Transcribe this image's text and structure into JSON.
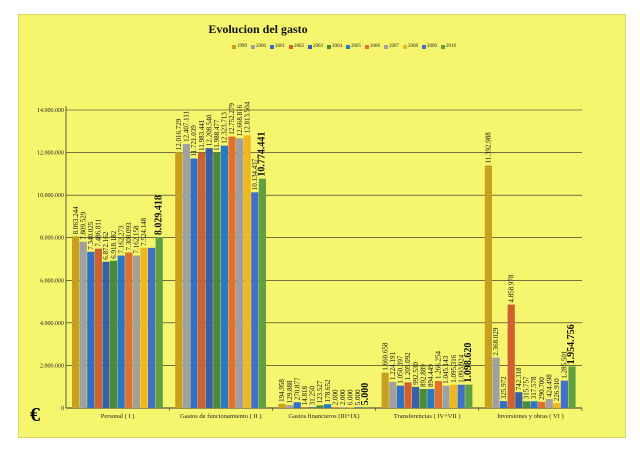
{
  "chart_data": {
    "type": "bar",
    "title": "Evolucion del gasto",
    "currency_symbol": "€",
    "series_names": [
      "1999",
      "2000",
      "2001",
      "2002",
      "2003",
      "2004",
      "2005",
      "2006",
      "2007",
      "2008",
      "2009",
      "2010"
    ],
    "series_colors": [
      "#c8a020",
      "#a0a0a0",
      "#3070c8",
      "#d06030",
      "#3860a8",
      "#4a8a3a",
      "#2878c8",
      "#e07030",
      "#a0a0a0",
      "#f0b820",
      "#4070c8",
      "#60a040"
    ],
    "categories": [
      "Personal ( I )",
      "Gastos de funcionamiento ( II )",
      "Gastos financieros (III+IX)",
      "Transferencias ( IV+VII )",
      "Inversiones y obras ( VI )"
    ],
    "values": [
      [
        8063244,
        7809529,
        7340025,
        7486811,
        6872162,
        6918182,
        7162273,
        7308093,
        7162158,
        7524148,
        7524148,
        8029418
      ],
      [
        12016729,
        12407111,
        11721039,
        11983441,
        12208540,
        11988477,
        12323713,
        12752279,
        12668816,
        12813504,
        10134437,
        10774441
      ],
      [
        194958,
        129888,
        270877,
        14818,
        31250,
        123527,
        178652,
        2000,
        2000,
        6000,
        5000,
        5000
      ],
      [
        1660658,
        1224191,
        1050397,
        1205092,
        992530,
        892889,
        894449,
        1266254,
        1045143,
        1095316,
        1093924,
        1098620
      ],
      [
        11392988,
        2368029,
        325972,
        4858978,
        742318,
        315757,
        317578,
        290700,
        424498,
        226910,
        1285501,
        1954756
      ]
    ],
    "value_labels": [
      [
        "8.063.244",
        "7.809.529",
        "7.340.025",
        "7.486.811",
        "6.872.162",
        "6.918.182",
        "7.162.273",
        "7.308.093",
        "7.162.158",
        "7.524.148",
        "",
        "8.029.418"
      ],
      [
        "12.016.729",
        "12.407.111",
        "11.721.039",
        "11.983.441",
        "12.208.540",
        "11.988.477",
        "12.323.713",
        "12.752.279",
        "12.668.816",
        "12.813.504",
        "10.134.437",
        "10.774.441"
      ],
      [
        "194.958",
        "129.888",
        "270.877",
        "14.818",
        "31.250",
        "123.527",
        "178.652",
        "2.000",
        "2.000",
        "6.000",
        "5.000",
        "5.000"
      ],
      [
        "1.660.658",
        "1.224.191",
        "1.050.397",
        "1.205.092",
        "992.530",
        "892.889",
        "894.449",
        "1.266.254",
        "1.045.143",
        "1.095.316",
        "1.093.924",
        "1.098.620"
      ],
      [
        "11.392.988",
        "2.368.029",
        "325.972",
        "4.858.978",
        "742.318",
        "315.757",
        "317.578",
        "290.700",
        "424.498",
        "226.910",
        "1.285.501",
        "1.954.756"
      ]
    ],
    "y_ticks": [
      "0",
      "2.000.000",
      "4.000.000",
      "6.000.000",
      "8.000.000",
      "10.000.000",
      "12.000.000",
      "14.000.000"
    ],
    "ylim": [
      0,
      14000000
    ],
    "grid": true,
    "legend_position": "top-center"
  }
}
